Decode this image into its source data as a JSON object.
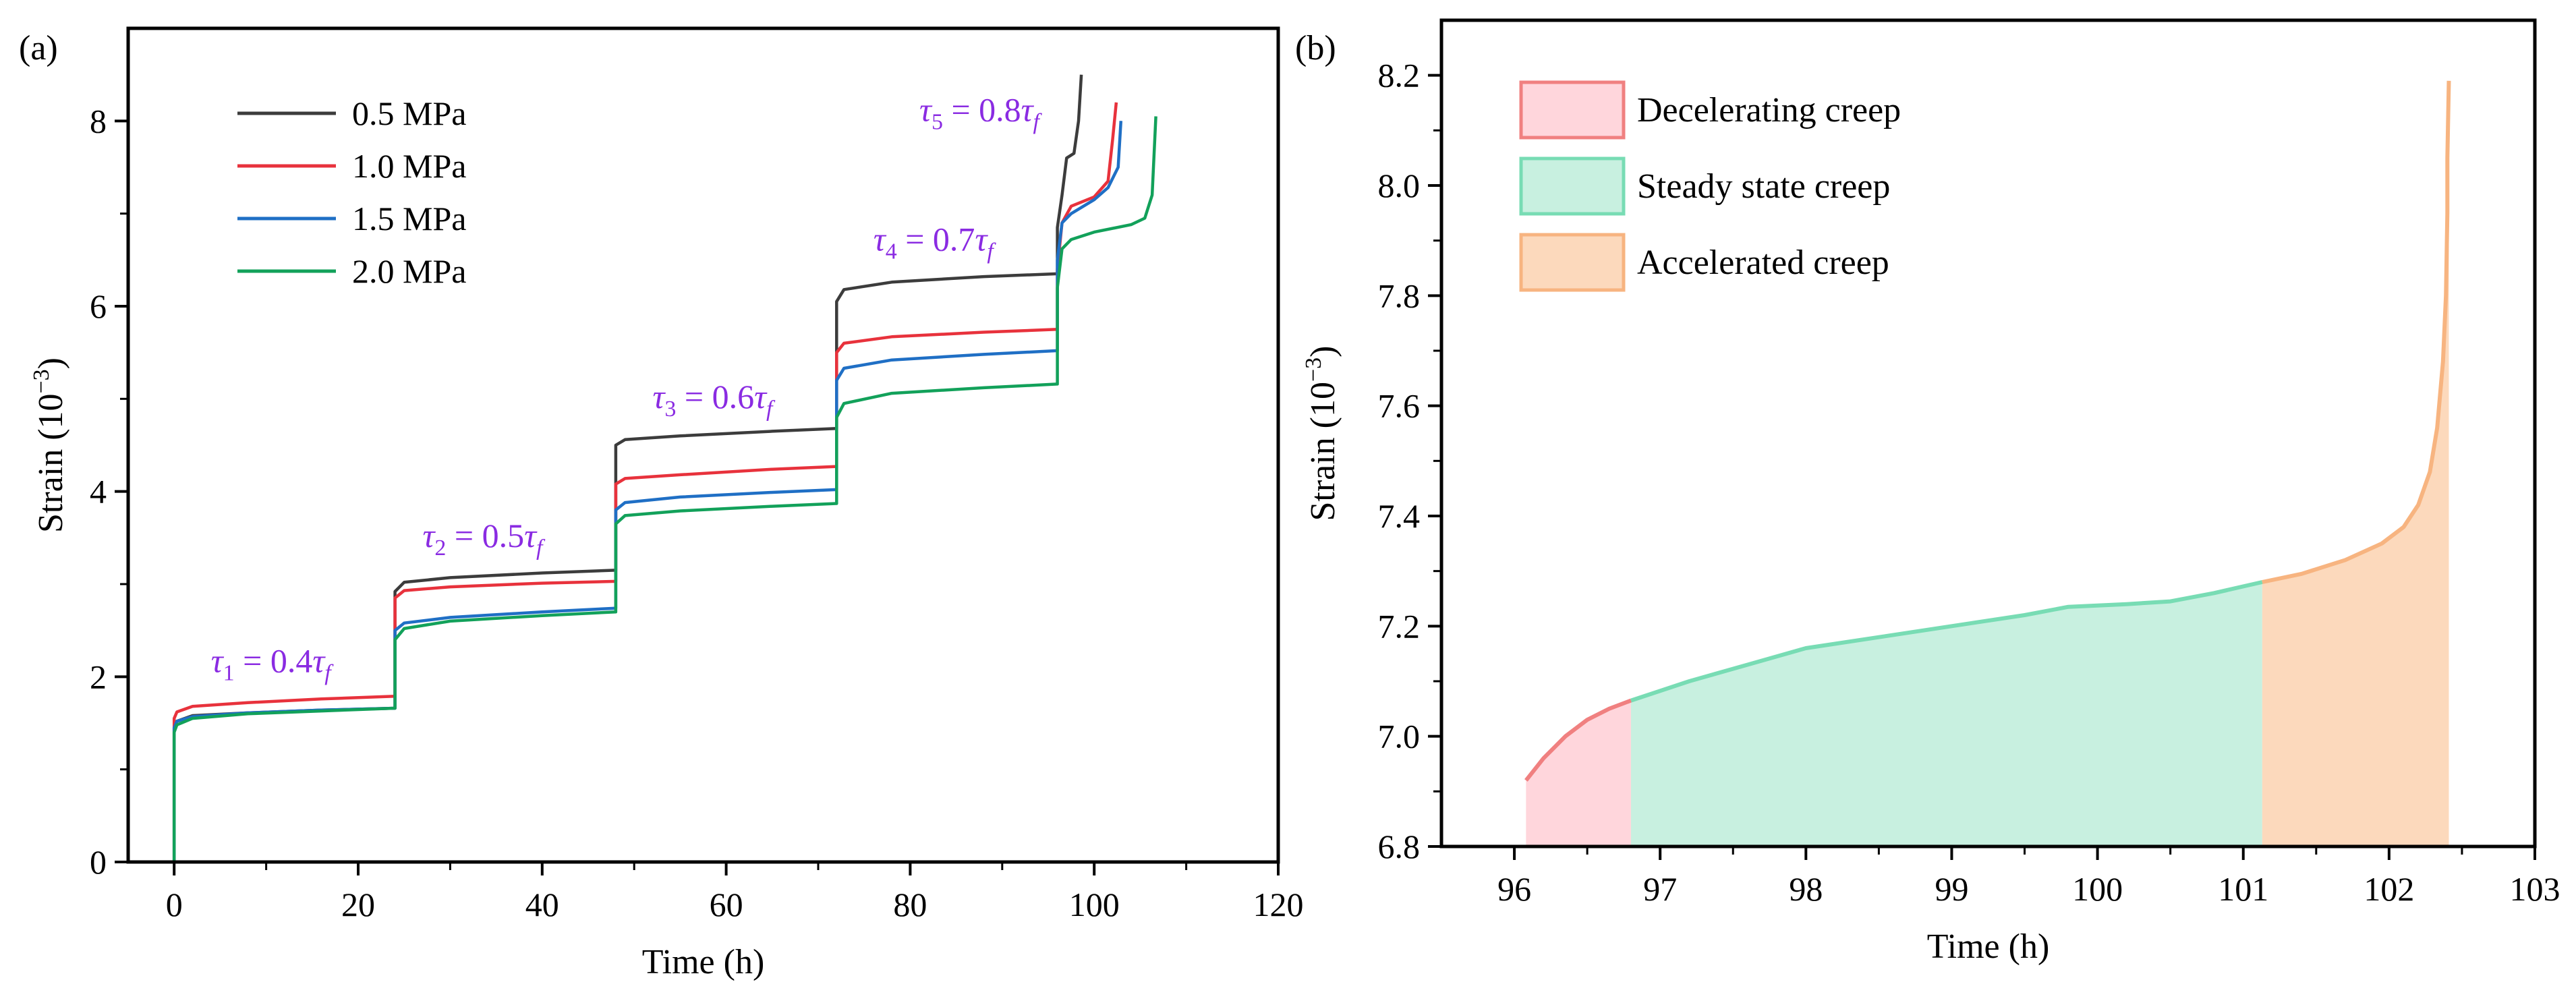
{
  "chart_data": [
    {
      "panel": "(a)",
      "type": "line",
      "xlabel": "Time (h)",
      "ylabel": "Strain (10",
      "ylabel_exp": "−3",
      "ylabel_close": ")",
      "xlim": [
        -5,
        120
      ],
      "ylim": [
        0,
        9
      ],
      "xticks": [
        0,
        20,
        40,
        60,
        80,
        100,
        120
      ],
      "yticks": [
        0,
        2,
        4,
        6,
        8
      ],
      "legend_position": "top-left",
      "series": [
        {
          "name": "0.5 MPa",
          "color": "#3c3c3c",
          "points": [
            [
              0,
              0
            ],
            [
              0,
              1.45
            ],
            [
              0.3,
              1.52
            ],
            [
              2,
              1.58
            ],
            [
              8,
              1.61
            ],
            [
              16,
              1.64
            ],
            [
              24,
              1.66
            ],
            [
              24,
              2.92
            ],
            [
              25,
              3.02
            ],
            [
              30,
              3.07
            ],
            [
              40,
              3.12
            ],
            [
              48,
              3.15
            ],
            [
              48,
              4.5
            ],
            [
              49,
              4.56
            ],
            [
              55,
              4.6
            ],
            [
              65,
              4.65
            ],
            [
              72,
              4.68
            ],
            [
              72,
              6.05
            ],
            [
              72.8,
              6.18
            ],
            [
              78,
              6.26
            ],
            [
              88,
              6.32
            ],
            [
              96,
              6.35
            ],
            [
              96,
              6.85
            ],
            [
              96.5,
              7.2
            ],
            [
              97,
              7.6
            ],
            [
              97.8,
              7.65
            ],
            [
              98.3,
              8.0
            ],
            [
              98.6,
              8.5
            ]
          ]
        },
        {
          "name": "1.0 MPa",
          "color": "#e8323c",
          "points": [
            [
              0,
              0
            ],
            [
              0,
              1.55
            ],
            [
              0.3,
              1.62
            ],
            [
              2,
              1.68
            ],
            [
              8,
              1.72
            ],
            [
              16,
              1.76
            ],
            [
              24,
              1.79
            ],
            [
              24,
              2.85
            ],
            [
              25,
              2.93
            ],
            [
              30,
              2.97
            ],
            [
              40,
              3.01
            ],
            [
              48,
              3.03
            ],
            [
              48,
              4.08
            ],
            [
              49,
              4.14
            ],
            [
              55,
              4.18
            ],
            [
              65,
              4.24
            ],
            [
              72,
              4.27
            ],
            [
              72,
              5.5
            ],
            [
              72.8,
              5.6
            ],
            [
              78,
              5.67
            ],
            [
              88,
              5.72
            ],
            [
              96,
              5.75
            ],
            [
              96,
              6.4
            ],
            [
              96.5,
              6.9
            ],
            [
              97.5,
              7.08
            ],
            [
              100,
              7.18
            ],
            [
              101.5,
              7.35
            ],
            [
              102.0,
              7.8
            ],
            [
              102.4,
              8.2
            ]
          ]
        },
        {
          "name": "1.5 MPa",
          "color": "#1f6fc5",
          "points": [
            [
              0,
              0
            ],
            [
              0,
              1.45
            ],
            [
              0.3,
              1.52
            ],
            [
              2,
              1.57
            ],
            [
              8,
              1.61
            ],
            [
              16,
              1.64
            ],
            [
              24,
              1.66
            ],
            [
              24,
              2.5
            ],
            [
              25,
              2.58
            ],
            [
              30,
              2.64
            ],
            [
              40,
              2.7
            ],
            [
              48,
              2.74
            ],
            [
              48,
              3.8
            ],
            [
              49,
              3.88
            ],
            [
              55,
              3.94
            ],
            [
              65,
              3.99
            ],
            [
              72,
              4.02
            ],
            [
              72,
              5.2
            ],
            [
              72.8,
              5.33
            ],
            [
              78,
              5.42
            ],
            [
              88,
              5.48
            ],
            [
              96,
              5.52
            ],
            [
              96,
              6.5
            ],
            [
              96.5,
              6.9
            ],
            [
              97.5,
              7.0
            ],
            [
              100,
              7.15
            ],
            [
              101.5,
              7.28
            ],
            [
              102.6,
              7.5
            ],
            [
              102.9,
              8.0
            ]
          ]
        },
        {
          "name": "2.0 MPa",
          "color": "#12a15a",
          "points": [
            [
              0,
              0
            ],
            [
              0,
              1.4
            ],
            [
              0.3,
              1.48
            ],
            [
              2,
              1.55
            ],
            [
              8,
              1.6
            ],
            [
              16,
              1.63
            ],
            [
              24,
              1.66
            ],
            [
              24,
              2.4
            ],
            [
              25,
              2.52
            ],
            [
              30,
              2.6
            ],
            [
              40,
              2.66
            ],
            [
              48,
              2.7
            ],
            [
              48,
              3.65
            ],
            [
              49,
              3.74
            ],
            [
              55,
              3.79
            ],
            [
              65,
              3.84
            ],
            [
              72,
              3.87
            ],
            [
              72,
              4.8
            ],
            [
              72.8,
              4.95
            ],
            [
              78,
              5.06
            ],
            [
              88,
              5.12
            ],
            [
              96,
              5.16
            ],
            [
              96,
              6.2
            ],
            [
              96.5,
              6.62
            ],
            [
              97.5,
              6.72
            ],
            [
              100,
              6.8
            ],
            [
              104,
              6.88
            ],
            [
              105.5,
              6.95
            ],
            [
              106.3,
              7.2
            ],
            [
              106.7,
              8.05
            ]
          ]
        }
      ],
      "annotations": [
        {
          "sym": "τ",
          "sub": "1",
          "coef": " = 0.4",
          "sym2": "τ",
          "sub2": "f",
          "x": 4,
          "y": 2.05,
          "color": "#8a2be2"
        },
        {
          "sym": "τ",
          "sub": "2",
          "coef": " = 0.5",
          "sym2": "τ",
          "sub2": "f",
          "x": 27,
          "y": 3.4,
          "color": "#8a2be2"
        },
        {
          "sym": "τ",
          "sub": "3",
          "coef": " = 0.6",
          "sym2": "τ",
          "sub2": "f",
          "x": 52,
          "y": 4.9,
          "color": "#8a2be2"
        },
        {
          "sym": "τ",
          "sub": "4",
          "coef": " = 0.7",
          "sym2": "τ",
          "sub2": "f",
          "x": 76,
          "y": 6.6,
          "color": "#8a2be2"
        },
        {
          "sym": "τ",
          "sub": "5",
          "coef": " = 0.8",
          "sym2": "τ",
          "sub2": "f",
          "x": 81,
          "y": 8.0,
          "color": "#8a2be2"
        }
      ]
    },
    {
      "panel": "(b)",
      "type": "area",
      "xlabel": "Time (h)",
      "ylabel": "Strain (10",
      "ylabel_exp": "−3",
      "ylabel_close": ")",
      "xlim": [
        95.5,
        103
      ],
      "ylim": [
        6.8,
        8.3
      ],
      "xticks": [
        96,
        97,
        98,
        99,
        100,
        101,
        102,
        103
      ],
      "yticks": [
        6.8,
        7.0,
        7.2,
        7.4,
        7.6,
        7.8,
        8.0,
        8.2
      ],
      "legend_position": "top-left",
      "series": [
        {
          "name": "Decelerating creep",
          "line_color": "#f08080",
          "fill_color": "#ffd6dc",
          "points": [
            [
              96.08,
              6.92
            ],
            [
              96.2,
              6.96
            ],
            [
              96.35,
              7.0
            ],
            [
              96.5,
              7.03
            ],
            [
              96.65,
              7.05
            ],
            [
              96.8,
              7.065
            ]
          ]
        },
        {
          "name": "Steady state creep",
          "line_color": "#78dcb4",
          "fill_color": "#c8f0e0",
          "points": [
            [
              96.8,
              7.065
            ],
            [
              97.2,
              7.1
            ],
            [
              97.6,
              7.13
            ],
            [
              98.0,
              7.16
            ],
            [
              98.5,
              7.18
            ],
            [
              99.0,
              7.2
            ],
            [
              99.5,
              7.22
            ],
            [
              99.8,
              7.235
            ],
            [
              100.2,
              7.24
            ],
            [
              100.5,
              7.245
            ],
            [
              100.8,
              7.26
            ],
            [
              101.13,
              7.28
            ]
          ]
        },
        {
          "name": "Accelerated creep",
          "line_color": "#f7b480",
          "fill_color": "#fcd9bc",
          "points": [
            [
              101.13,
              7.28
            ],
            [
              101.4,
              7.295
            ],
            [
              101.7,
              7.32
            ],
            [
              101.95,
              7.35
            ],
            [
              102.1,
              7.38
            ],
            [
              102.2,
              7.42
            ],
            [
              102.28,
              7.48
            ],
            [
              102.33,
              7.56
            ],
            [
              102.37,
              7.68
            ],
            [
              102.39,
              7.8
            ],
            [
              102.4,
              7.95
            ],
            [
              102.4,
              8.05
            ],
            [
              102.41,
              8.19
            ]
          ]
        }
      ]
    }
  ]
}
